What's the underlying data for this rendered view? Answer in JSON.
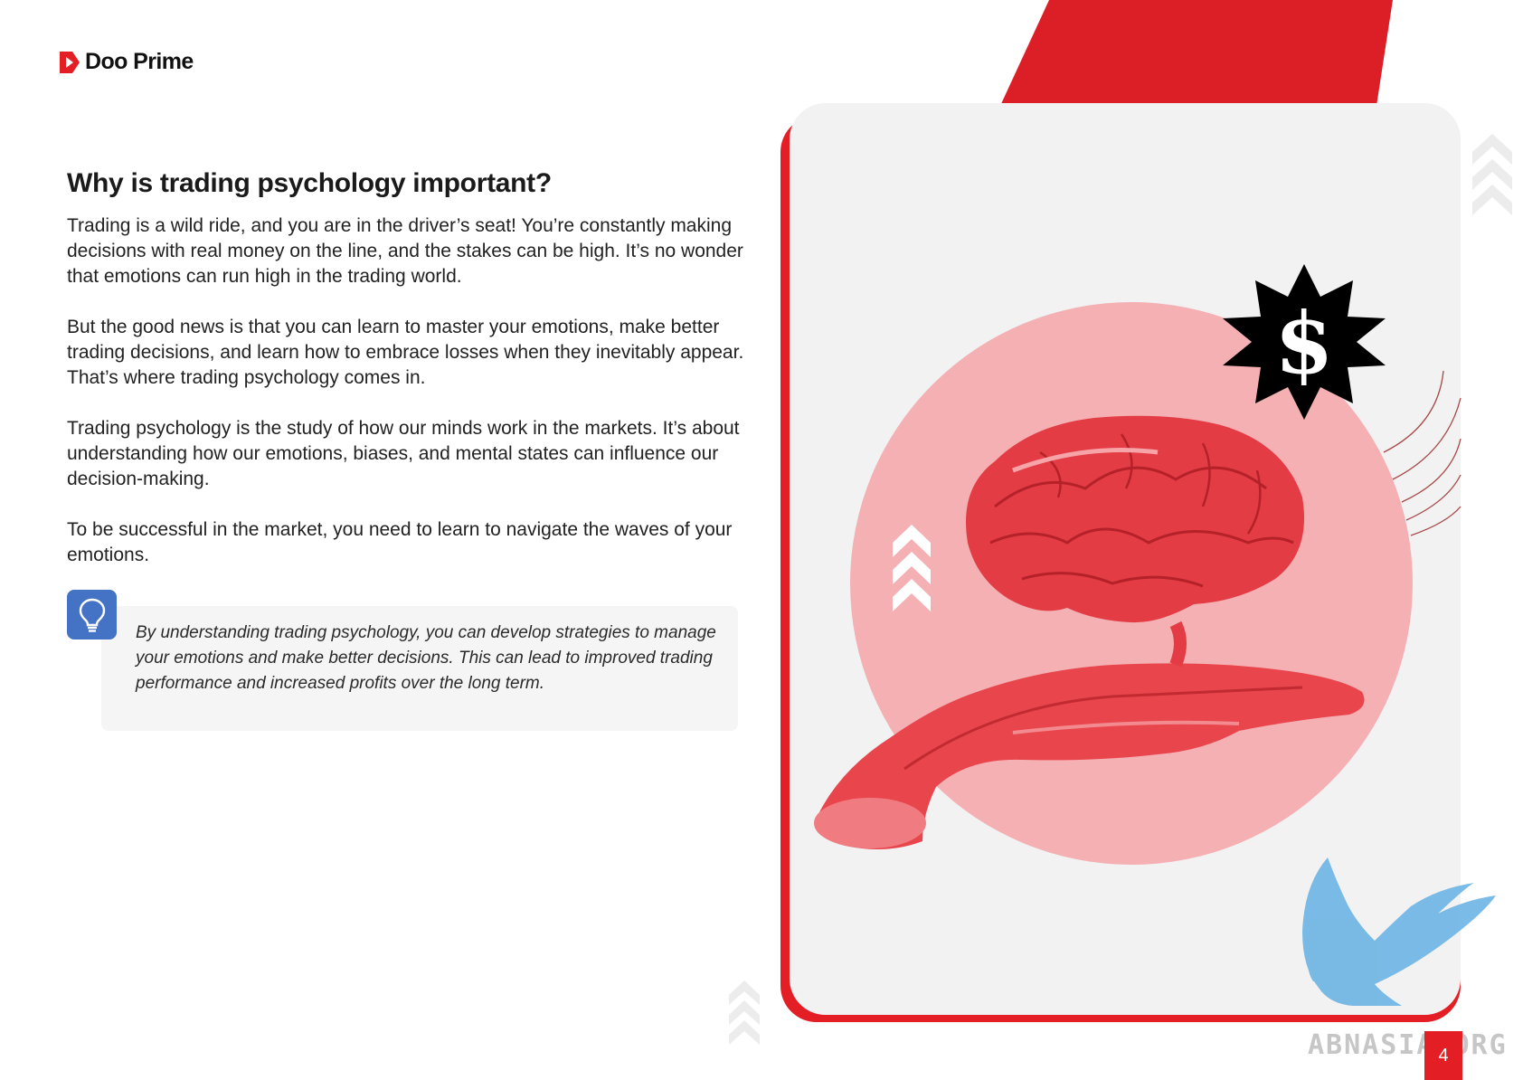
{
  "brand": {
    "name": "Doo Prime"
  },
  "content": {
    "heading": "Why is trading psychology important?",
    "paragraphs": [
      "Trading is a wild ride, and you are in the driver’s seat! You’re constantly making decisions with real money on the line, and the stakes can be high. It’s no wonder that emotions can run high in the trading world.",
      "But the good news is that you can learn to master your emotions, make better trading decisions, and learn how to embrace losses when they inevitably appear. That’s where trading psychology comes in.",
      "Trading psychology is the study of how our minds work in the markets. It’s about understanding how our emotions, biases, and mental states can influence our decision-making.",
      "To be successful in the market, you need to learn to navigate the waves of your emotions."
    ],
    "tip": "By understanding trading psychology, you can develop strategies to manage your emotions and make better decisions. This can lead to improved trading performance and increased profits over the long term."
  },
  "illustration": {
    "badge_symbol": "$"
  },
  "watermark": "ABNASIA.ORG",
  "page_number": "4",
  "colors": {
    "accent_red": "#e31e24",
    "tip_blue": "#4472c4",
    "circle_pink": "#f4b0b3"
  },
  "icons": [
    "doo-prime-logo-icon",
    "lightbulb-icon",
    "dollar-badge-icon",
    "chevron-arrows-icon",
    "eagle-watermark-icon"
  ]
}
